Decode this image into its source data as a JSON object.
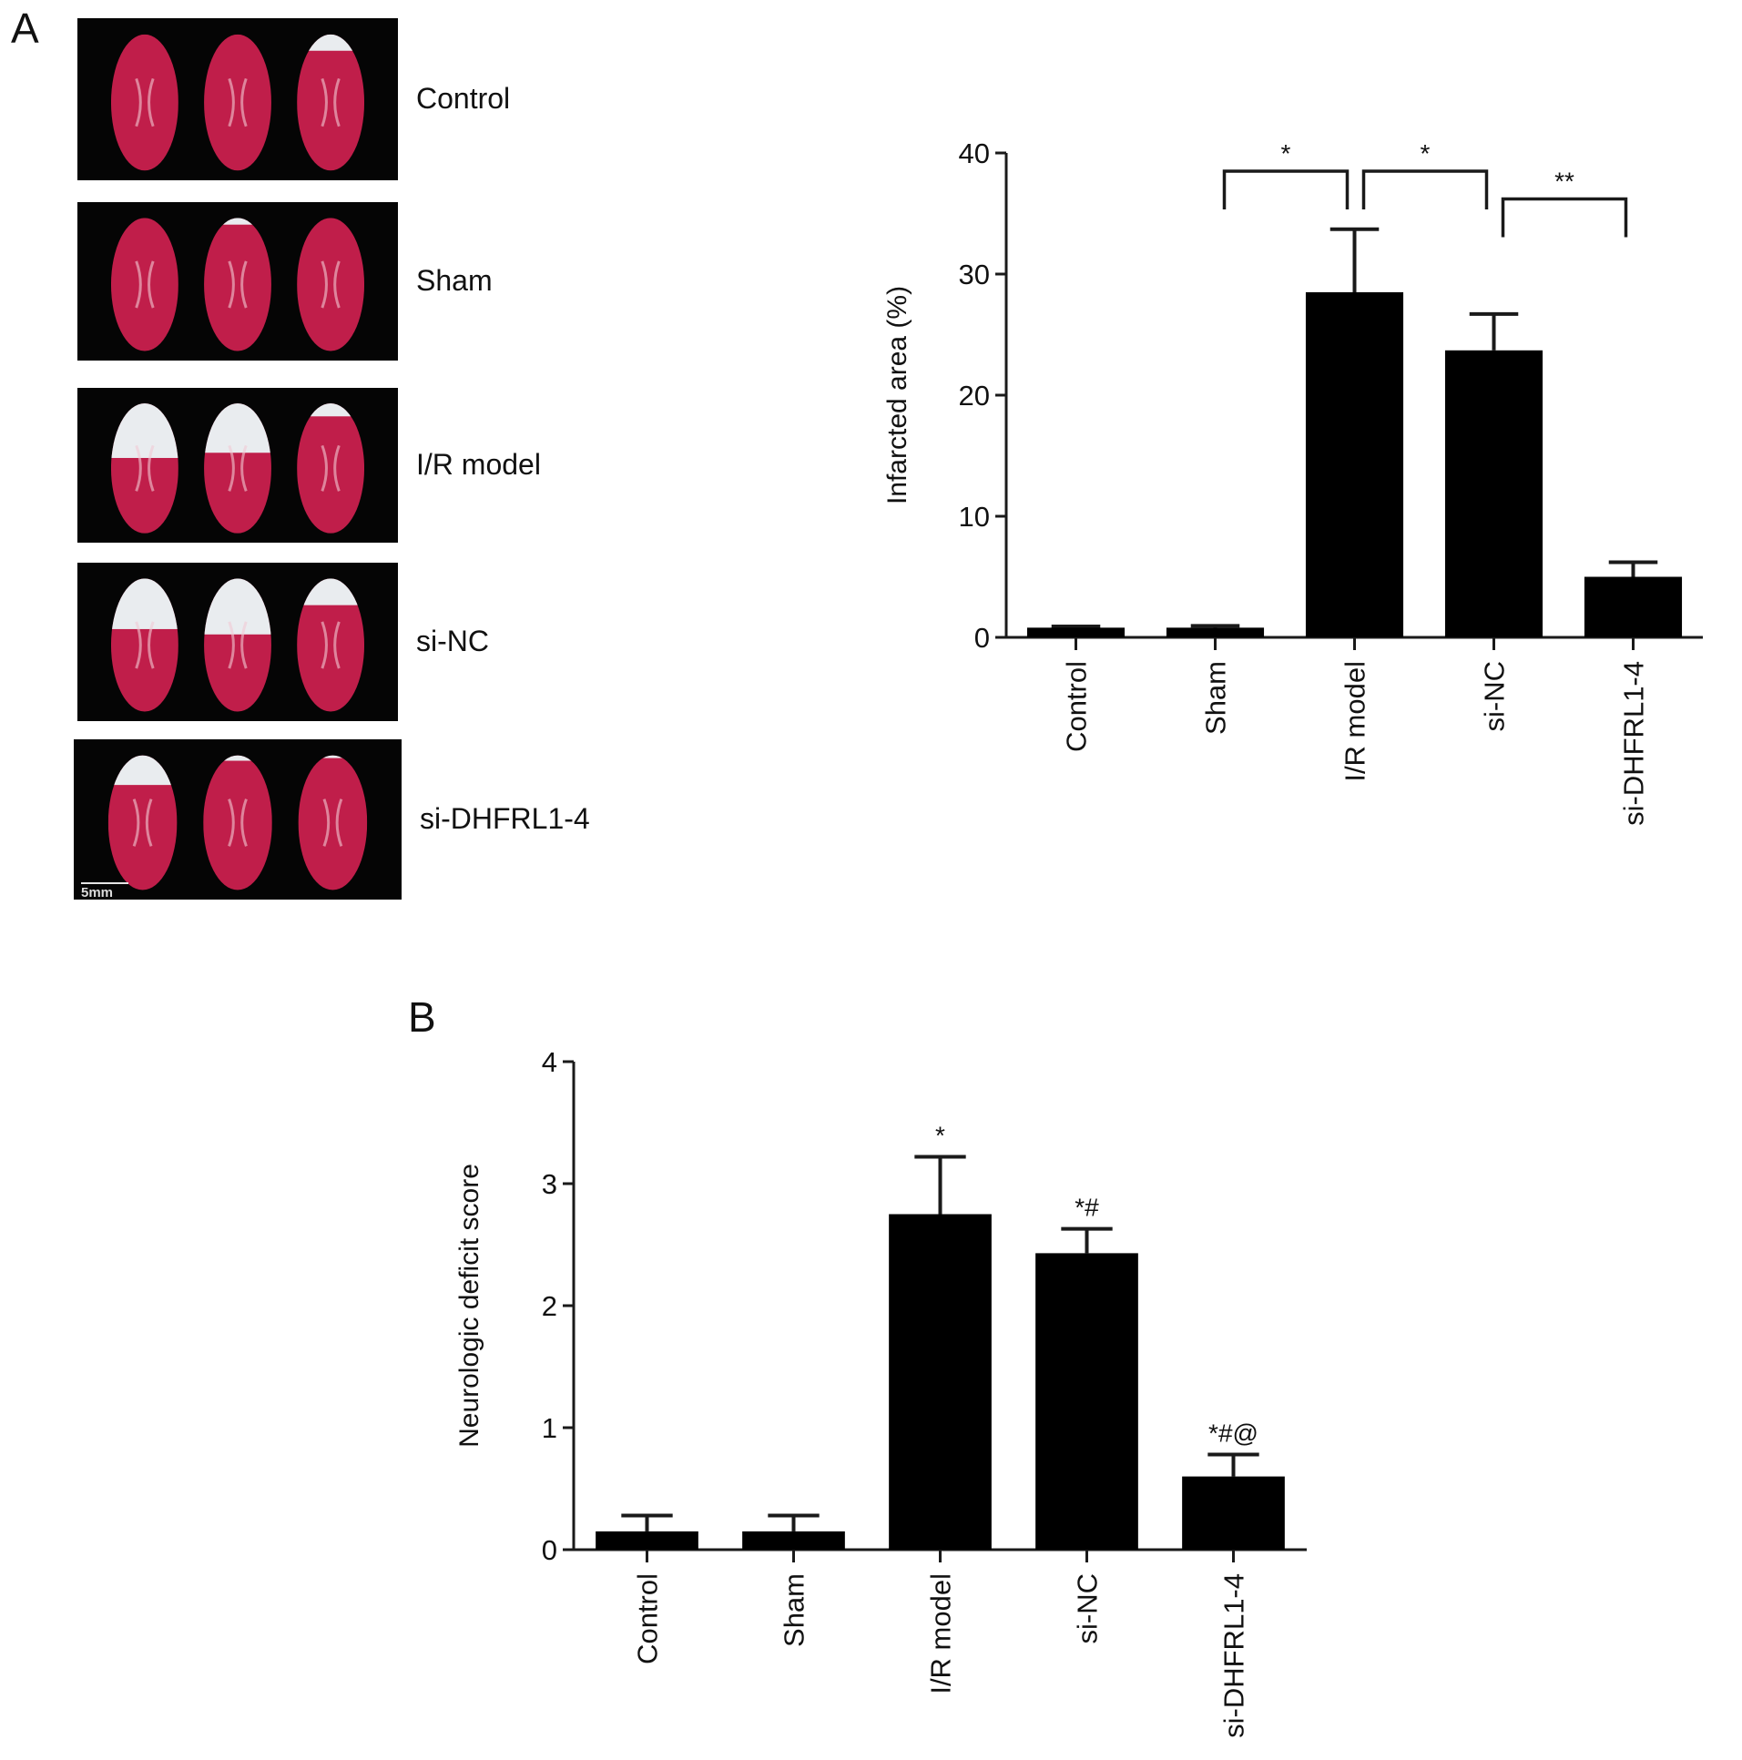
{
  "panel_a": {
    "letter": "A",
    "photo_rows": [
      {
        "label": "Control",
        "pallor": [
          0.0,
          0.0,
          0.12
        ]
      },
      {
        "label": "Sham",
        "pallor": [
          0.0,
          0.05,
          0.0
        ]
      },
      {
        "label": "I/R model",
        "pallor": [
          0.42,
          0.38,
          0.1
        ]
      },
      {
        "label": "si-NC",
        "pallor": [
          0.38,
          0.42,
          0.2
        ]
      },
      {
        "label": "si-DHFRL1-4",
        "pallor": [
          0.22,
          0.04,
          0.02
        ]
      }
    ],
    "scale_bar_label": "5mm",
    "colors": {
      "tissue": "#c01e4a",
      "infarct": "#e9ecef",
      "background": "#050505"
    }
  },
  "panel_b": {
    "letter": "B"
  },
  "chart_data": [
    {
      "id": "infarct-area",
      "type": "bar",
      "categories": [
        "Control",
        "Sham",
        "I/R model",
        "si-NC",
        "si-DHFRL1-4"
      ],
      "values": [
        0.8,
        0.8,
        28.5,
        23.7,
        5.0
      ],
      "errors": [
        0.1,
        0.15,
        5.2,
        3.0,
        1.2
      ],
      "ylabel": "Infarcted area (%)",
      "xlabel": "",
      "ylim": [
        0,
        40
      ],
      "yticks": [
        0,
        10,
        20,
        30,
        40
      ],
      "grid": false,
      "bar_color": "#000000",
      "significance_brackets": [
        {
          "from": 1,
          "to": 2,
          "label": "*",
          "level": 38.5
        },
        {
          "from": 2,
          "to": 3,
          "label": "*",
          "level": 38.5
        },
        {
          "from": 3,
          "to": 4,
          "label": "**",
          "level": 36.2
        }
      ]
    },
    {
      "id": "neuro-score",
      "type": "bar",
      "categories": [
        "Control",
        "Sham",
        "I/R model",
        "si-NC",
        "si-DHFRL1-4"
      ],
      "values": [
        0.15,
        0.15,
        2.75,
        2.43,
        0.6
      ],
      "errors": [
        0.13,
        0.13,
        0.47,
        0.2,
        0.18
      ],
      "ylabel": "Neurologic deficit score",
      "xlabel": "",
      "ylim": [
        0,
        4
      ],
      "yticks": [
        0,
        1,
        2,
        3,
        4
      ],
      "grid": false,
      "bar_color": "#000000",
      "annotations": [
        "",
        "",
        "*",
        "*#",
        "*#@"
      ]
    }
  ]
}
